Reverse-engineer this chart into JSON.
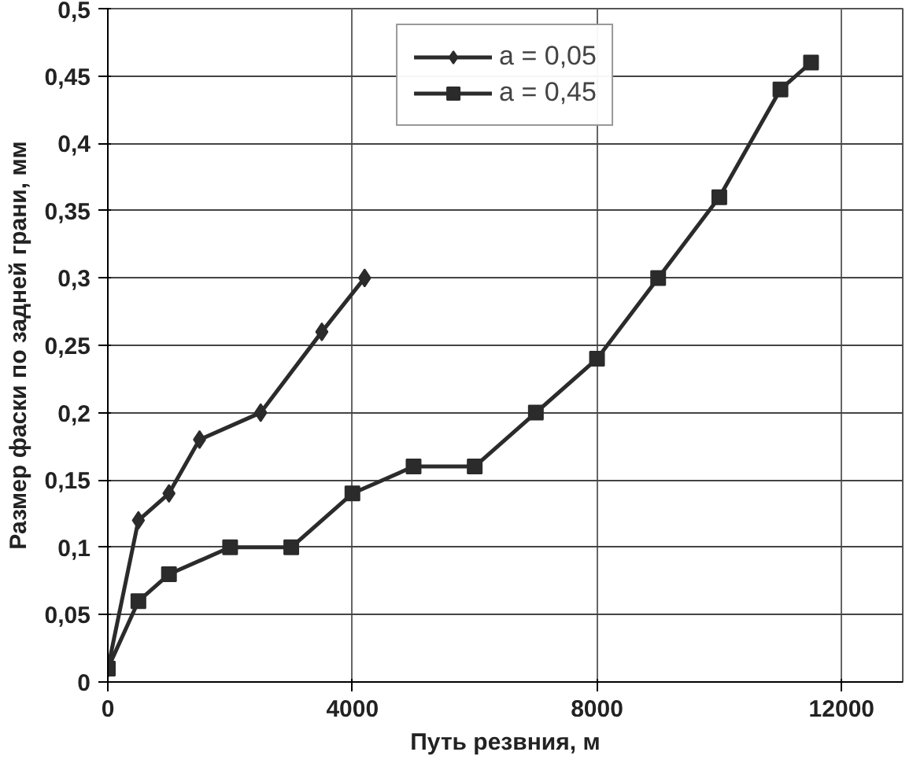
{
  "chart_data": {
    "type": "line",
    "xlabel": "Путь резвния, м",
    "ylabel": "Размер фаски по задней грани, мм",
    "xlim": [
      0,
      13000
    ],
    "xticks": [
      0,
      4000,
      8000,
      12000
    ],
    "ylim": [
      0,
      0.5
    ],
    "yticks": [
      {
        "value": 0,
        "label": "0"
      },
      {
        "value": 0.05,
        "label": "0,05"
      },
      {
        "value": 0.1,
        "label": "0,1"
      },
      {
        "value": 0.15,
        "label": "0,15"
      },
      {
        "value": 0.2,
        "label": "0,2"
      },
      {
        "value": 0.25,
        "label": "0,25"
      },
      {
        "value": 0.3,
        "label": "0,3"
      },
      {
        "value": 0.35,
        "label": "0,35"
      },
      {
        "value": 0.4,
        "label": "0,4"
      },
      {
        "value": 0.45,
        "label": "0,45"
      },
      {
        "value": 0.5,
        "label": "0,5"
      }
    ],
    "grid": true,
    "legend": "top",
    "line_style": "solid",
    "series": [
      {
        "name": "a = 0,05",
        "color": "#2b2b2b",
        "marker": "diamond",
        "x": [
          0,
          500,
          1000,
          1500,
          2500,
          3500,
          4200
        ],
        "values": [
          0.01,
          0.12,
          0.14,
          0.18,
          0.2,
          0.26,
          0.3
        ]
      },
      {
        "name": "a = 0,45",
        "color": "#2b2b2b",
        "marker": "square",
        "x": [
          0,
          500,
          1000,
          2000,
          3000,
          4000,
          5000,
          6000,
          7000,
          8000,
          9000,
          10000,
          11000,
          11500
        ],
        "values": [
          0.01,
          0.06,
          0.08,
          0.1,
          0.1,
          0.14,
          0.16,
          0.16,
          0.2,
          0.24,
          0.3,
          0.36,
          0.44,
          0.46
        ]
      }
    ]
  }
}
